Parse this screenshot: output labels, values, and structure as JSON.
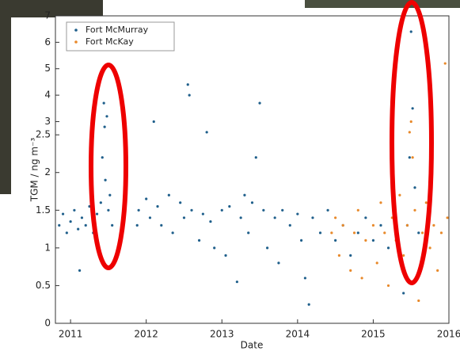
{
  "chart_data": {
    "type": "scatter",
    "xlabel": "Date",
    "ylabel": "TGM / ng m⁻³",
    "xlim": [
      2010.8,
      2016
    ],
    "xticks": [
      2011,
      2012,
      2013,
      2014,
      2015,
      2016
    ],
    "ylim": [
      0,
      7
    ],
    "yticks": [
      0,
      0.5,
      1,
      1.5,
      2,
      2.5,
      3,
      4,
      5,
      6,
      7
    ],
    "y_scale_break": 2.5,
    "legend": "upper left",
    "series": [
      {
        "name": "Fort McMurray",
        "color": "#1f5f8b",
        "x": [
          2010.85,
          2010.9,
          2010.95,
          2011.0,
          2011.05,
          2011.1,
          2011.12,
          2011.15,
          2011.2,
          2011.25,
          2011.3,
          2011.35,
          2011.4,
          2011.42,
          2011.44,
          2011.45,
          2011.46,
          2011.48,
          2011.5,
          2011.52,
          2011.55,
          2011.88,
          2011.9,
          2012.0,
          2012.05,
          2012.1,
          2012.15,
          2012.2,
          2012.3,
          2012.35,
          2012.45,
          2012.5,
          2012.55,
          2012.57,
          2012.6,
          2012.7,
          2012.75,
          2012.8,
          2012.85,
          2012.9,
          2013.0,
          2013.05,
          2013.1,
          2013.2,
          2013.25,
          2013.3,
          2013.35,
          2013.4,
          2013.45,
          2013.5,
          2013.55,
          2013.6,
          2013.7,
          2013.75,
          2013.8,
          2013.9,
          2014.0,
          2014.05,
          2014.1,
          2014.15,
          2014.2,
          2014.3,
          2014.4,
          2014.5,
          2014.6,
          2014.7,
          2014.8,
          2014.9,
          2015.0,
          2015.1,
          2015.2,
          2015.3,
          2015.4,
          2015.45,
          2015.48,
          2015.5,
          2015.52,
          2015.55,
          2015.6
        ],
        "values": [
          1.3,
          1.45,
          1.2,
          1.35,
          1.5,
          1.25,
          0.7,
          1.4,
          1.3,
          1.55,
          1.2,
          1.45,
          1.6,
          2.2,
          3.7,
          2.8,
          1.9,
          3.2,
          1.5,
          1.7,
          1.3,
          1.3,
          1.5,
          1.65,
          1.4,
          3.0,
          1.55,
          1.3,
          1.7,
          1.2,
          1.6,
          1.4,
          4.4,
          4.0,
          1.5,
          1.1,
          1.45,
          2.6,
          1.35,
          1.0,
          1.5,
          0.9,
          1.55,
          0.55,
          1.4,
          1.7,
          1.2,
          1.6,
          2.2,
          3.7,
          1.5,
          1.0,
          1.4,
          0.8,
          1.5,
          1.3,
          1.45,
          1.1,
          0.6,
          0.25,
          1.4,
          1.2,
          1.5,
          1.1,
          1.3,
          0.9,
          1.2,
          1.4,
          1.1,
          1.3,
          1.0,
          1.2,
          0.4,
          1.3,
          2.2,
          6.4,
          3.5,
          1.8,
          1.2
        ]
      },
      {
        "name": "Fort McKay",
        "color": "#e8892a",
        "x": [
          2014.45,
          2014.5,
          2014.55,
          2014.6,
          2014.7,
          2014.75,
          2014.8,
          2014.85,
          2014.9,
          2015.0,
          2015.05,
          2015.1,
          2015.15,
          2015.2,
          2015.25,
          2015.3,
          2015.35,
          2015.4,
          2015.45,
          2015.48,
          2015.5,
          2015.52,
          2015.55,
          2015.6,
          2015.65,
          2015.7,
          2015.75,
          2015.8,
          2015.85,
          2015.9,
          2015.95,
          2015.98
        ],
        "values": [
          1.2,
          1.4,
          0.9,
          1.3,
          0.7,
          1.2,
          1.5,
          0.6,
          1.1,
          1.3,
          0.8,
          1.6,
          1.2,
          0.5,
          1.4,
          1.1,
          1.7,
          0.9,
          1.3,
          2.6,
          3.0,
          2.2,
          1.5,
          0.3,
          1.2,
          1.6,
          1.0,
          1.3,
          0.7,
          1.2,
          5.2,
          1.4
        ]
      }
    ]
  }
}
